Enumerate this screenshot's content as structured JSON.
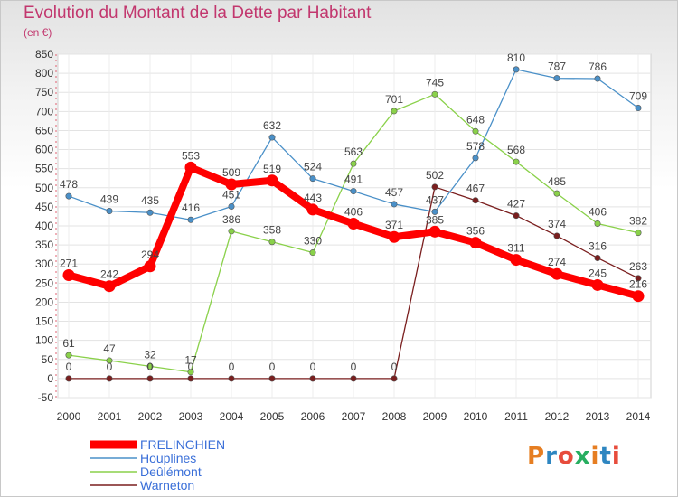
{
  "header": {
    "title": "Evolution du Montant de la Dette par Habitant",
    "subtitle": "(en €)"
  },
  "logo": {
    "text": "Proxiti"
  },
  "chart_data": {
    "type": "line",
    "title": "Evolution du Montant de la Dette par Habitant",
    "ylabel": "(en €)",
    "xlabel": "",
    "ylim": [
      -50,
      850
    ],
    "yticks": [
      -50,
      0,
      50,
      100,
      150,
      200,
      250,
      300,
      350,
      400,
      450,
      500,
      550,
      600,
      650,
      700,
      750,
      800,
      850
    ],
    "x": [
      "2000",
      "2001",
      "2002",
      "2003",
      "2004",
      "2005",
      "2006",
      "2007",
      "2008",
      "2009",
      "2010",
      "2011",
      "2012",
      "2013",
      "2014"
    ],
    "grid": true,
    "legend_position": "bottom-left",
    "series": [
      {
        "name": "FRELINGHIEN",
        "color": "#ff0000",
        "values": [
          271,
          242,
          294,
          553,
          509,
          519,
          443,
          406,
          371,
          385,
          356,
          311,
          274,
          245,
          216
        ]
      },
      {
        "name": "Houplines",
        "color": "#4a90c8",
        "values": [
          478,
          439,
          435,
          416,
          451,
          632,
          524,
          491,
          457,
          437,
          578,
          810,
          787,
          786,
          709
        ]
      },
      {
        "name": "Deûlémont",
        "color": "#8ad14a",
        "values": [
          61,
          47,
          32,
          17,
          386,
          358,
          330,
          563,
          701,
          745,
          648,
          568,
          485,
          406,
          382
        ]
      },
      {
        "name": "Warneton",
        "color": "#7a1e1e",
        "values": [
          0,
          0,
          0,
          0,
          0,
          0,
          0,
          0,
          0,
          502,
          467,
          427,
          374,
          316,
          263
        ]
      }
    ]
  }
}
